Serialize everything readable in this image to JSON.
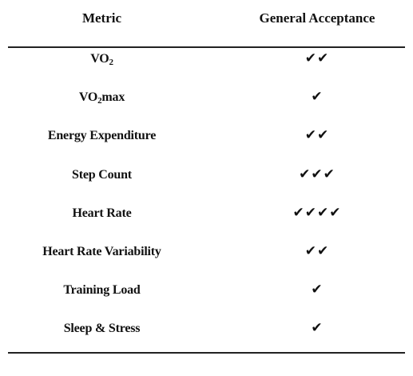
{
  "table": {
    "headers": {
      "metric": "Metric",
      "acceptance": "General Acceptance"
    },
    "rows": [
      {
        "metric_base": "VO",
        "metric_sub": "2",
        "metric_tail": "",
        "acceptance": "✔✔",
        "check_count": 2
      },
      {
        "metric_base": "VO",
        "metric_sub": "2",
        "metric_tail": "max",
        "acceptance": "✔",
        "check_count": 1
      },
      {
        "metric_base": "Energy Expenditure",
        "metric_sub": "",
        "metric_tail": "",
        "acceptance": "✔✔",
        "check_count": 2
      },
      {
        "metric_base": "Step Count",
        "metric_sub": "",
        "metric_tail": "",
        "acceptance": "✔✔✔",
        "check_count": 3
      },
      {
        "metric_base": "Heart Rate",
        "metric_sub": "",
        "metric_tail": "",
        "acceptance": "✔✔✔✔",
        "check_count": 4
      },
      {
        "metric_base": "Heart Rate Variability",
        "metric_sub": "",
        "metric_tail": "",
        "acceptance": "✔✔",
        "check_count": 2
      },
      {
        "metric_base": "Training Load",
        "metric_sub": "",
        "metric_tail": "",
        "acceptance": "✔",
        "check_count": 1
      },
      {
        "metric_base": "Sleep & Stress",
        "metric_sub": "",
        "metric_tail": "",
        "acceptance": "✔",
        "check_count": 1
      }
    ]
  }
}
